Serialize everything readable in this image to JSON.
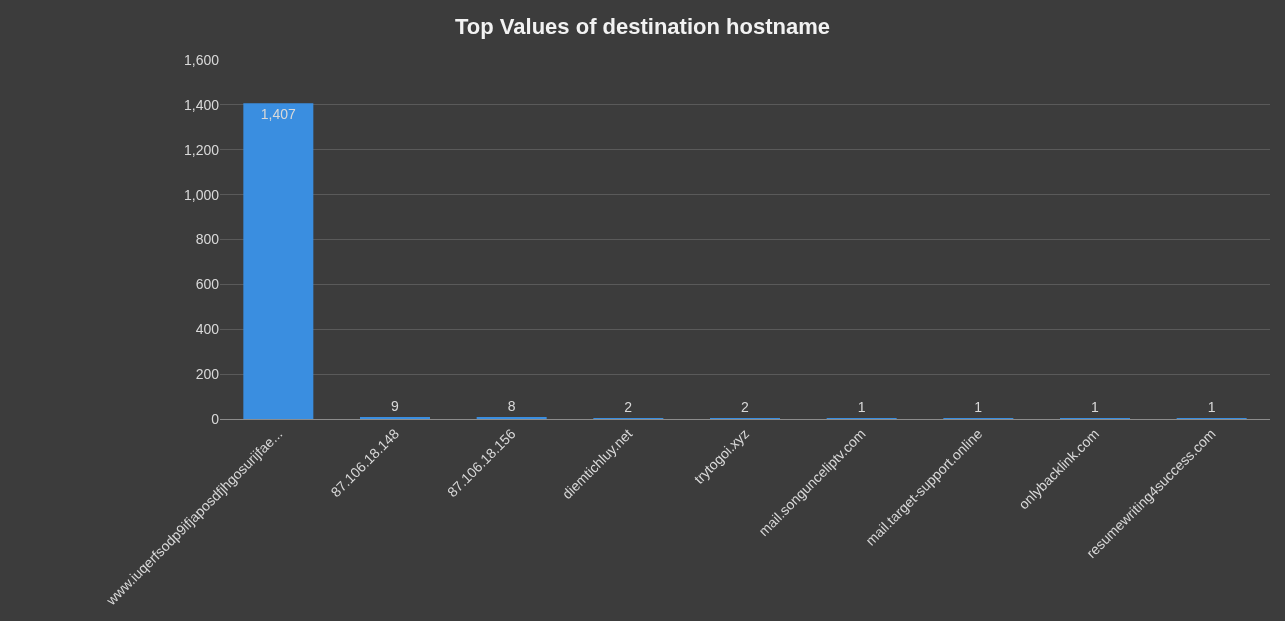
{
  "chart_data": {
    "type": "bar",
    "title": "Top Values of destination hostname",
    "categories": [
      "www.iuqerfsodp9ifjaposdfjhgosurijfae...",
      "87.106.18.148",
      "87.106.18.156",
      "diemtichluy.net",
      "trytogoi.xyz",
      "mail.songunceliptv.com",
      "mail.target-support.online",
      "onlybacklink.com",
      "resumewriting4success.com"
    ],
    "values": [
      1407,
      9,
      8,
      2,
      2,
      1,
      1,
      1,
      1
    ],
    "color": "#3a8ee0",
    "ylim": [
      0,
      1600
    ],
    "yticks": [
      0,
      200,
      400,
      600,
      800,
      {
        "value": 1000,
        "label": "1,000"
      },
      {
        "value": 1200,
        "label": "1,200"
      },
      {
        "value": 1400,
        "label": "1,400"
      },
      {
        "value": 1600,
        "label": "1,600"
      }
    ],
    "value_labels": [
      "1,407",
      "9",
      "8",
      "2",
      "2",
      "1",
      "1",
      "1",
      "1"
    ],
    "grid": "y",
    "legend": false
  }
}
